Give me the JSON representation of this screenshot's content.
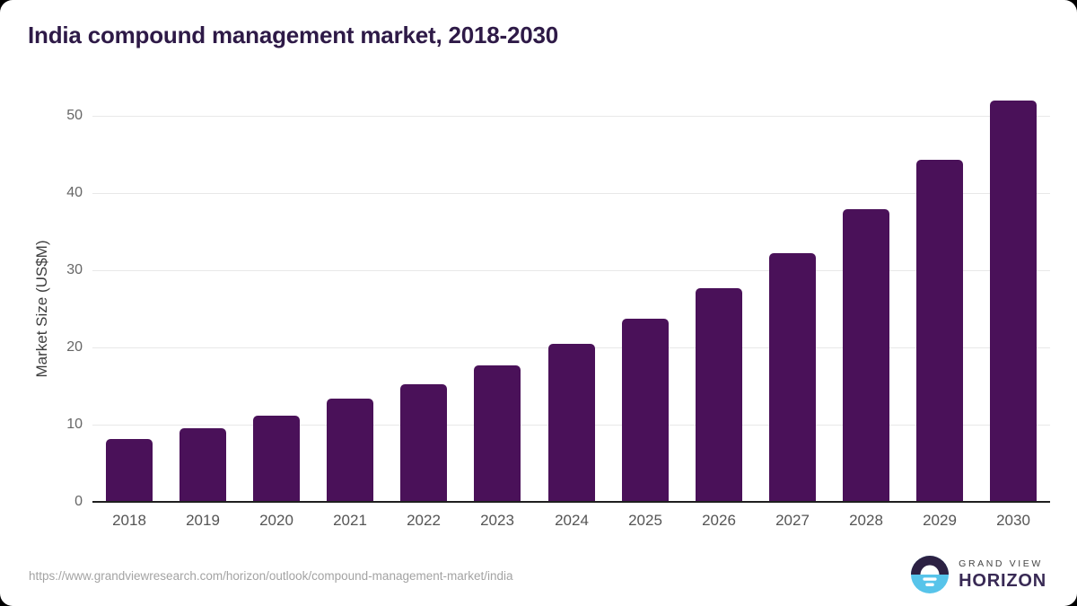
{
  "chart_data": {
    "type": "bar",
    "title": "India compound management market, 2018-2030",
    "categories": [
      "2018",
      "2019",
      "2020",
      "2021",
      "2022",
      "2023",
      "2024",
      "2025",
      "2026",
      "2027",
      "2028",
      "2029",
      "2030"
    ],
    "values": [
      8.1,
      9.5,
      11.1,
      13.3,
      15.2,
      17.6,
      20.4,
      23.7,
      27.7,
      32.2,
      37.9,
      44.2,
      51.9
    ],
    "xlabel": "",
    "ylabel": "Market Size (US$M)",
    "ylim": [
      0,
      55
    ],
    "yticks": [
      0,
      10,
      20,
      30,
      40,
      50
    ],
    "grid": "horizontal-only",
    "legend": "none",
    "bar_color": "#4a1159",
    "title_color": "#2e1a47",
    "axis_label_color": "#666666",
    "gridline_color": "#e8e8e8"
  },
  "footer": {
    "source_url": "https://www.grandviewresearch.com/horizon/outlook/compound-management-market/india",
    "logo_top": "GRAND VIEW",
    "logo_bottom": "HORIZON",
    "logo_dark_color": "#2c2143",
    "logo_blue_color": "#57c4ea"
  }
}
